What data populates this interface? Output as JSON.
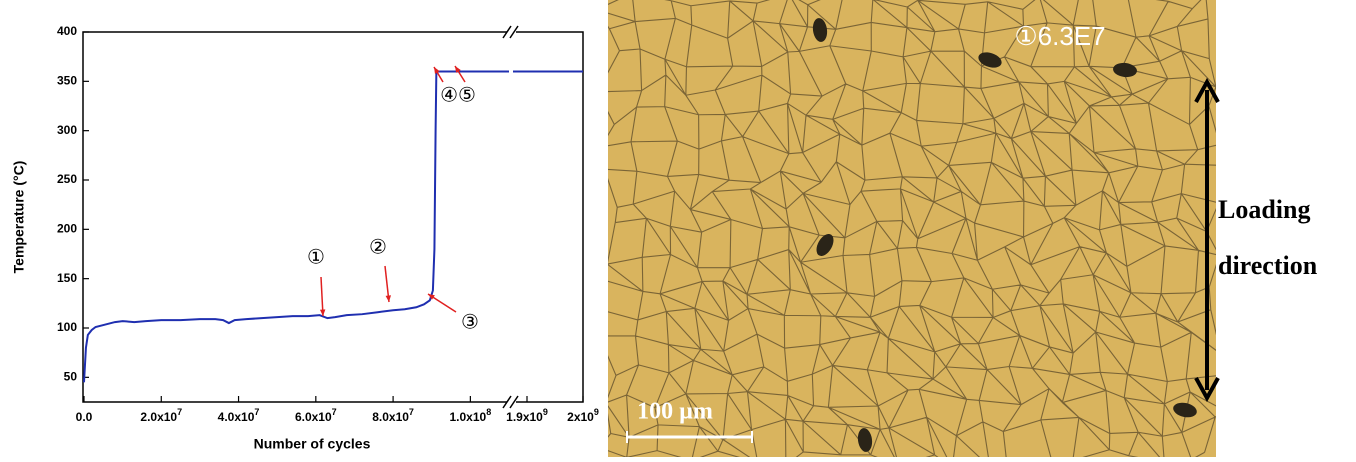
{
  "chart_data": {
    "type": "line",
    "x_label": "Number of cycles",
    "y_label": "Temperature (°C)",
    "x_segments": [
      {
        "xlim": [
          0,
          110000000
        ],
        "xticks": [
          {
            "value": 0,
            "label": "0.0"
          },
          {
            "value": 20000000,
            "label": "2.0x10",
            "exponent": "7"
          },
          {
            "value": 40000000,
            "label": "4.0x10",
            "exponent": "7"
          },
          {
            "value": 60000000,
            "label": "6.0x10",
            "exponent": "7"
          },
          {
            "value": 80000000,
            "label": "8.0x10",
            "exponent": "7"
          },
          {
            "value": 100000000,
            "label": "1.0x10",
            "exponent": "8"
          }
        ]
      },
      {
        "xlim": [
          1875000000,
          2000000000
        ],
        "xticks": [
          {
            "value": 1900000000,
            "label": "1.9x10",
            "exponent": "9"
          },
          {
            "value": 2000000000,
            "label": "2x10",
            "exponent": "9"
          }
        ]
      }
    ],
    "axis_break": true,
    "ylim": [
      25,
      400
    ],
    "yticks": [
      50,
      100,
      150,
      200,
      250,
      300,
      350,
      400
    ],
    "series": [
      {
        "color": "#1f2fb0",
        "x": [
          0,
          500000,
          1000000,
          2000000,
          3000000,
          5000000,
          8000000,
          10000000,
          13000000,
          16000000,
          20000000,
          25000000,
          30000000,
          34000000,
          36000000,
          37500000,
          39000000,
          42000000,
          46000000,
          50000000,
          54000000,
          58000000,
          61000000,
          63000000,
          65000000,
          68000000,
          72000000,
          76000000,
          80000000,
          83000000,
          86000000,
          88000000,
          89500000,
          90300000,
          90700000,
          91000000,
          91200000,
          100000000,
          110000000,
          1000000000,
          1875000000,
          2000000000
        ],
        "values": [
          45,
          80,
          93,
          98,
          101,
          103,
          106,
          107,
          106,
          107,
          108,
          108,
          109,
          109,
          108,
          105,
          108,
          109,
          110,
          111,
          112,
          112,
          113,
          110,
          111,
          113,
          114,
          116,
          118,
          119,
          121,
          124,
          128,
          138,
          180,
          300,
          360,
          360,
          360,
          null,
          360,
          360
        ]
      }
    ],
    "annotations": [
      "①",
      "②",
      "③",
      "④⑤"
    ]
  },
  "micrograph": {
    "label": "①6.3E7",
    "scale_bar": "100 µm",
    "direction_label": [
      "Loading",
      "direction"
    ]
  }
}
